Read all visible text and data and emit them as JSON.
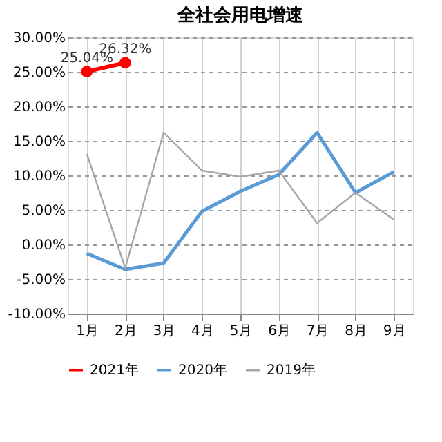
{
  "chart_data": {
    "type": "line",
    "title": "全社会用电增速",
    "categories": [
      "1月",
      "2月",
      "3月",
      "4月",
      "5月",
      "6月",
      "7月",
      "8月",
      "9月"
    ],
    "series": [
      {
        "name": "2021年",
        "color": "#ff0000",
        "values": [
          25.04,
          26.32,
          null,
          null,
          null,
          null,
          null,
          null,
          null
        ],
        "marker": "circle",
        "value_labels": [
          "25.04%",
          "26.32%",
          null,
          null,
          null,
          null,
          null,
          null,
          null
        ]
      },
      {
        "name": "2020年",
        "color": "#5b9bd5",
        "values": [
          -1.3,
          -3.6,
          -2.7,
          4.8,
          7.7,
          10.1,
          16.2,
          7.5,
          10.5
        ]
      },
      {
        "name": "2019年",
        "color": "#a6a6a6",
        "values": [
          13.1,
          -3.4,
          16.2,
          10.7,
          9.8,
          10.7,
          3.1,
          7.5,
          3.6
        ]
      }
    ],
    "ylim": [
      -10,
      30
    ],
    "yticks": [
      {
        "value": -10,
        "label": "-10.00%"
      },
      {
        "value": -5,
        "label": "-5.00%"
      },
      {
        "value": 0,
        "label": "0.00%"
      },
      {
        "value": 5,
        "label": "5.00%"
      },
      {
        "value": 10,
        "label": "10.00%"
      },
      {
        "value": 15,
        "label": "15.00%"
      },
      {
        "value": 20,
        "label": "20.00%"
      },
      {
        "value": 25,
        "label": "25.00%"
      },
      {
        "value": 30,
        "label": "30.00%"
      }
    ],
    "grid": true,
    "legend": "bottom",
    "line_style": "solid"
  }
}
